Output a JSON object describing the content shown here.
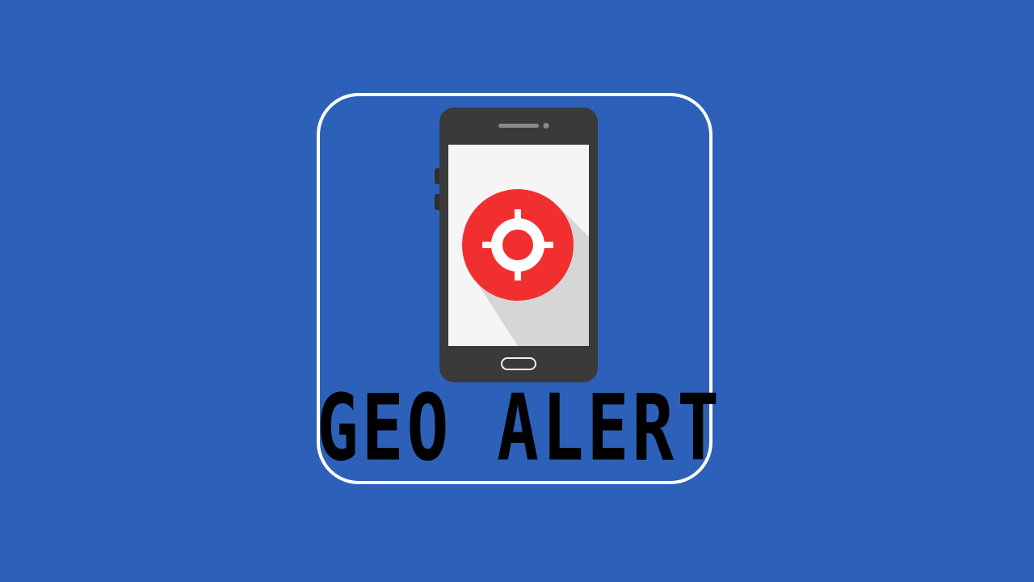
{
  "colors": {
    "background": "#2d61b9",
    "frame": "#ffffff",
    "phone_body": "#3a3a3a",
    "screen": "#f5f5f5",
    "screen_shadow": "#d6d6d6",
    "target_circle": "#f22f2f",
    "target_mark": "#ffffff",
    "title_text": "#000000"
  },
  "icons": {
    "phone": "smartphone-icon",
    "target": "crosshair-target-icon"
  },
  "title": "GEO ALERT"
}
